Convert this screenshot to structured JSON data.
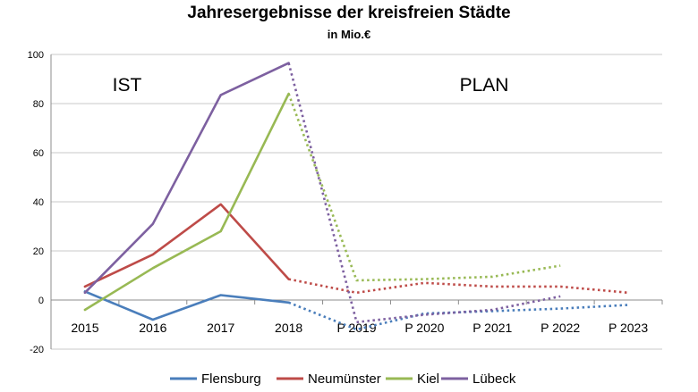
{
  "chart_data": {
    "type": "line",
    "title": "Jahresergebnisse der kreisfreien Städte",
    "subtitle": "in Mio.€",
    "xlabel": "",
    "ylabel": "",
    "categories": [
      "2015",
      "2016",
      "2017",
      "2018",
      "P 2019",
      "P 2020",
      "P 2021",
      "P 2022",
      "P 2023"
    ],
    "ylim": [
      -20,
      100
    ],
    "yticks": [
      -20,
      0,
      20,
      40,
      60,
      80,
      100
    ],
    "grid": true,
    "legend_position": "bottom",
    "annotations": [
      "IST",
      "PLAN"
    ],
    "actual_through_index": 3,
    "series": [
      {
        "name": "Flensburg",
        "color": "#4a7ebb",
        "values": [
          3.5,
          -8,
          2,
          -1,
          -12,
          -5.5,
          -4.5,
          -3.5,
          -2
        ]
      },
      {
        "name": "Neumünster",
        "color": "#be4b48",
        "values": [
          5.5,
          18.5,
          39,
          8.5,
          3,
          7,
          5.5,
          5.5,
          3
        ]
      },
      {
        "name": "Kiel",
        "color": "#98b954",
        "values": [
          -4,
          13,
          28,
          84,
          8,
          8.5,
          9.5,
          14,
          null
        ]
      },
      {
        "name": "Lübeck",
        "color": "#7d60a0",
        "values": [
          3,
          31,
          83.5,
          96.5,
          -9,
          -6,
          -4,
          1.5,
          null
        ]
      }
    ]
  }
}
